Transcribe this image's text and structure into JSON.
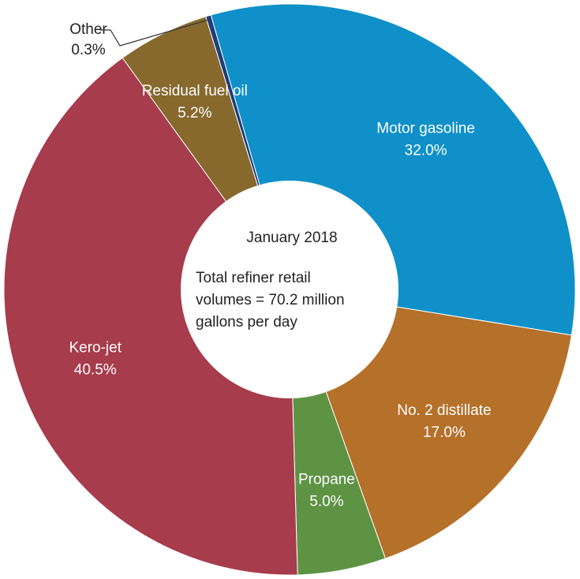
{
  "chart_data": {
    "type": "pie",
    "center_text": {
      "title": "January 2018",
      "lines": [
        "Total  refiner retail",
        "volumes  =  70.2   million",
        "gallons per day"
      ]
    },
    "series": [
      {
        "name": "Motor gasoline",
        "value": 32.0,
        "label": "32.0%",
        "color": "#0f90c9"
      },
      {
        "name": "No. 2 distillate",
        "value": 17.0,
        "label": "17.0%",
        "color": "#b5702a"
      },
      {
        "name": "Propane",
        "value": 5.0,
        "label": "5.0%",
        "color": "#5e9344"
      },
      {
        "name": "Kero-jet",
        "value": 40.5,
        "label": "40.5%",
        "color": "#a63c4c"
      },
      {
        "name": "Residual  fuel oil",
        "value": 5.2,
        "label": "5.2%",
        "color": "#87692d"
      },
      {
        "name": "Other",
        "value": 0.3,
        "label": "0.3%",
        "color": "#1f3d7a"
      }
    ]
  }
}
